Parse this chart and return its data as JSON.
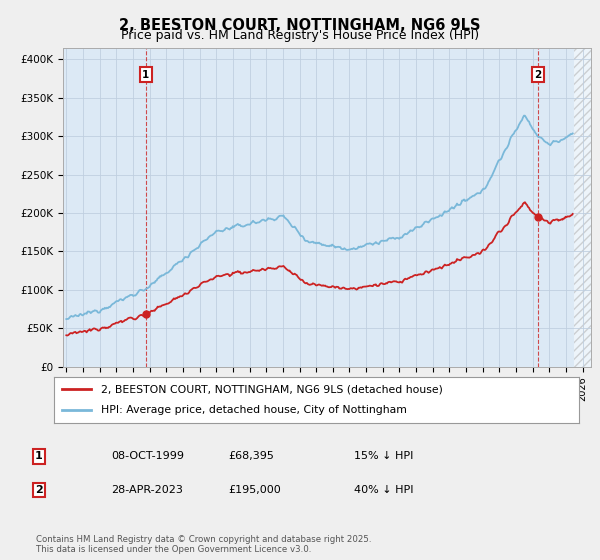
{
  "title": "2, BEESTON COURT, NOTTINGHAM, NG6 9LS",
  "subtitle": "Price paid vs. HM Land Registry's House Price Index (HPI)",
  "ylabel_ticks": [
    "£0",
    "£50K",
    "£100K",
    "£150K",
    "£200K",
    "£250K",
    "£300K",
    "£350K",
    "£400K"
  ],
  "ytick_values": [
    0,
    50000,
    100000,
    150000,
    200000,
    250000,
    300000,
    350000,
    400000
  ],
  "ylim": [
    0,
    415000
  ],
  "xlim_start": 1994.8,
  "xlim_end": 2026.5,
  "hpi_color": "#7ab8d9",
  "price_color": "#cc2222",
  "sale1_year": 1999.77,
  "sale1_price": 68395,
  "sale2_year": 2023.32,
  "sale2_price": 195000,
  "legend_line1": "2, BEESTON COURT, NOTTINGHAM, NG6 9LS (detached house)",
  "legend_line2": "HPI: Average price, detached house, City of Nottingham",
  "table_row1": [
    "1",
    "08-OCT-1999",
    "£68,395",
    "15% ↓ HPI"
  ],
  "table_row2": [
    "2",
    "28-APR-2023",
    "£195,000",
    "40% ↓ HPI"
  ],
  "footer": "Contains HM Land Registry data © Crown copyright and database right 2025.\nThis data is licensed under the Open Government Licence v3.0.",
  "background_color": "#efefef",
  "plot_bg_color": "#dce9f5",
  "grid_color": "#c0cfe0",
  "hatch_start": 2025.5,
  "title_fontsize": 10.5,
  "subtitle_fontsize": 9,
  "tick_fontsize": 7.5
}
